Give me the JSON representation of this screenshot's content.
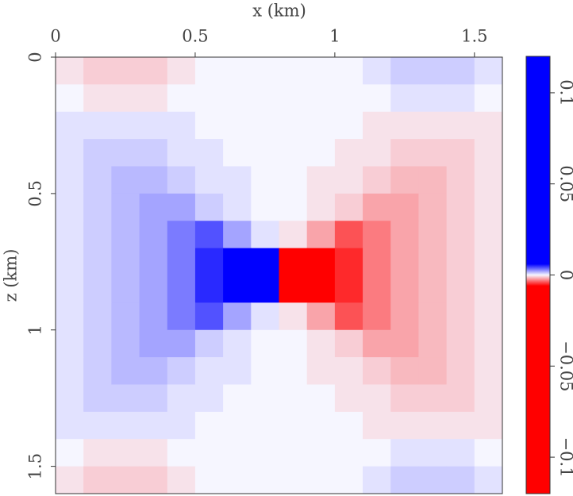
{
  "chart_data": {
    "type": "heatmap",
    "xlabel": "x (km)",
    "ylabel": "z (km)",
    "xlim": [
      0,
      1.6
    ],
    "ylim": [
      0,
      1.6
    ],
    "xticks": [
      0,
      0.5,
      1,
      1.5
    ],
    "yticks": [
      0,
      0.5,
      1,
      1.5
    ],
    "y_inverted": true,
    "x": [
      0.05,
      0.15,
      0.25,
      0.35,
      0.45,
      0.55,
      0.65,
      0.75,
      0.85,
      0.95,
      1.05,
      1.15,
      1.25,
      1.35,
      1.45,
      1.55
    ],
    "y": [
      0.05,
      0.15,
      0.25,
      0.35,
      0.45,
      0.55,
      0.65,
      0.75,
      0.85,
      0.95,
      1.05,
      1.15,
      1.25,
      1.35,
      1.45,
      1.55
    ],
    "values": [
      [
        -0.0005,
        -0.001,
        -0.001,
        -0.001,
        -0.0005,
        0,
        0,
        0,
        0,
        0,
        0,
        0.0005,
        0.001,
        0.001,
        0.001,
        0.0005
      ],
      [
        0,
        -0.0005,
        -0.0005,
        -0.0005,
        0,
        0,
        0,
        0,
        0,
        0,
        0,
        0,
        0.0005,
        0.0005,
        0.0005,
        0
      ],
      [
        0.0005,
        0.0005,
        0.0005,
        0.0005,
        0.0005,
        0,
        0,
        0,
        0,
        0,
        0,
        -0.0005,
        -0.0005,
        -0.0005,
        -0.0005,
        -0.0005
      ],
      [
        0.0005,
        0.001,
        0.001,
        0.001,
        0.0005,
        0.0005,
        0,
        0,
        0,
        0,
        -0.0005,
        -0.0005,
        -0.001,
        -0.001,
        -0.001,
        -0.0005
      ],
      [
        0.0005,
        0.001,
        0.0015,
        0.0015,
        0.001,
        0.0005,
        0.0005,
        0,
        0,
        -0.0005,
        -0.0005,
        -0.001,
        -0.0015,
        -0.0015,
        -0.001,
        -0.0005
      ],
      [
        0.0005,
        0.001,
        0.0015,
        0.002,
        0.002,
        0.001,
        0.0005,
        0,
        0,
        -0.0005,
        -0.001,
        -0.002,
        -0.002,
        -0.0015,
        -0.001,
        -0.0005
      ],
      [
        0.0005,
        0.001,
        0.0015,
        0.002,
        0.003,
        0.004,
        0.002,
        0.0005,
        -0.0005,
        -0.002,
        -0.004,
        -0.003,
        -0.002,
        -0.0015,
        -0.001,
        -0.0005
      ],
      [
        0.0005,
        0.001,
        0.0015,
        0.002,
        0.003,
        0.005,
        0.02,
        0.1,
        -0.1,
        -0.02,
        -0.005,
        -0.003,
        -0.002,
        -0.0015,
        -0.001,
        -0.0005
      ],
      [
        0.0005,
        0.001,
        0.0015,
        0.002,
        0.003,
        0.005,
        0.02,
        0.1,
        -0.1,
        -0.02,
        -0.005,
        -0.003,
        -0.002,
        -0.0015,
        -0.001,
        -0.0005
      ],
      [
        0.0005,
        0.001,
        0.0015,
        0.002,
        0.003,
        0.004,
        0.002,
        0.0005,
        -0.0005,
        -0.002,
        -0.004,
        -0.003,
        -0.002,
        -0.0015,
        -0.001,
        -0.0005
      ],
      [
        0.0005,
        0.001,
        0.0015,
        0.002,
        0.002,
        0.001,
        0.0005,
        0,
        0,
        -0.0005,
        -0.001,
        -0.002,
        -0.002,
        -0.0015,
        -0.001,
        -0.0005
      ],
      [
        0.0005,
        0.001,
        0.0015,
        0.0015,
        0.001,
        0.0005,
        0.0005,
        0,
        0,
        -0.0005,
        -0.0005,
        -0.001,
        -0.0015,
        -0.0015,
        -0.001,
        -0.0005
      ],
      [
        0.0005,
        0.001,
        0.001,
        0.001,
        0.0005,
        0.0005,
        0,
        0,
        0,
        0,
        -0.0005,
        -0.0005,
        -0.001,
        -0.001,
        -0.001,
        -0.0005
      ],
      [
        0.0005,
        0.0005,
        0.0005,
        0.0005,
        0.0005,
        0,
        0,
        0,
        0,
        0,
        0,
        -0.0005,
        -0.0005,
        -0.0005,
        -0.0005,
        -0.0005
      ],
      [
        0,
        -0.0005,
        -0.0005,
        -0.0005,
        0,
        0,
        0,
        0,
        0,
        0,
        0,
        0,
        0.0005,
        0.0005,
        0.0005,
        0
      ],
      [
        -0.0005,
        -0.001,
        -0.001,
        -0.001,
        -0.0005,
        0,
        0,
        0,
        0,
        0,
        0,
        0.0005,
        0.001,
        0.001,
        0.001,
        0.0005
      ]
    ],
    "colormap": [
      {
        "value": -0.12,
        "color": "#ff0000"
      },
      {
        "value": -0.006,
        "color": "#ff0000"
      },
      {
        "value": 0,
        "color": "#f6f6ff"
      },
      {
        "value": 0.006,
        "color": "#0000ff"
      },
      {
        "value": 0.12,
        "color": "#0000ff"
      }
    ],
    "clim": [
      -0.12,
      0.12
    ],
    "cticks": [
      {
        "value": 0.1,
        "label": "0.1"
      },
      {
        "value": 0.05,
        "label": "0.05"
      },
      0,
      {
        "value": -0.05,
        "label": "−0.05"
      },
      {
        "value": -0.1,
        "label": "−0.1"
      }
    ]
  }
}
